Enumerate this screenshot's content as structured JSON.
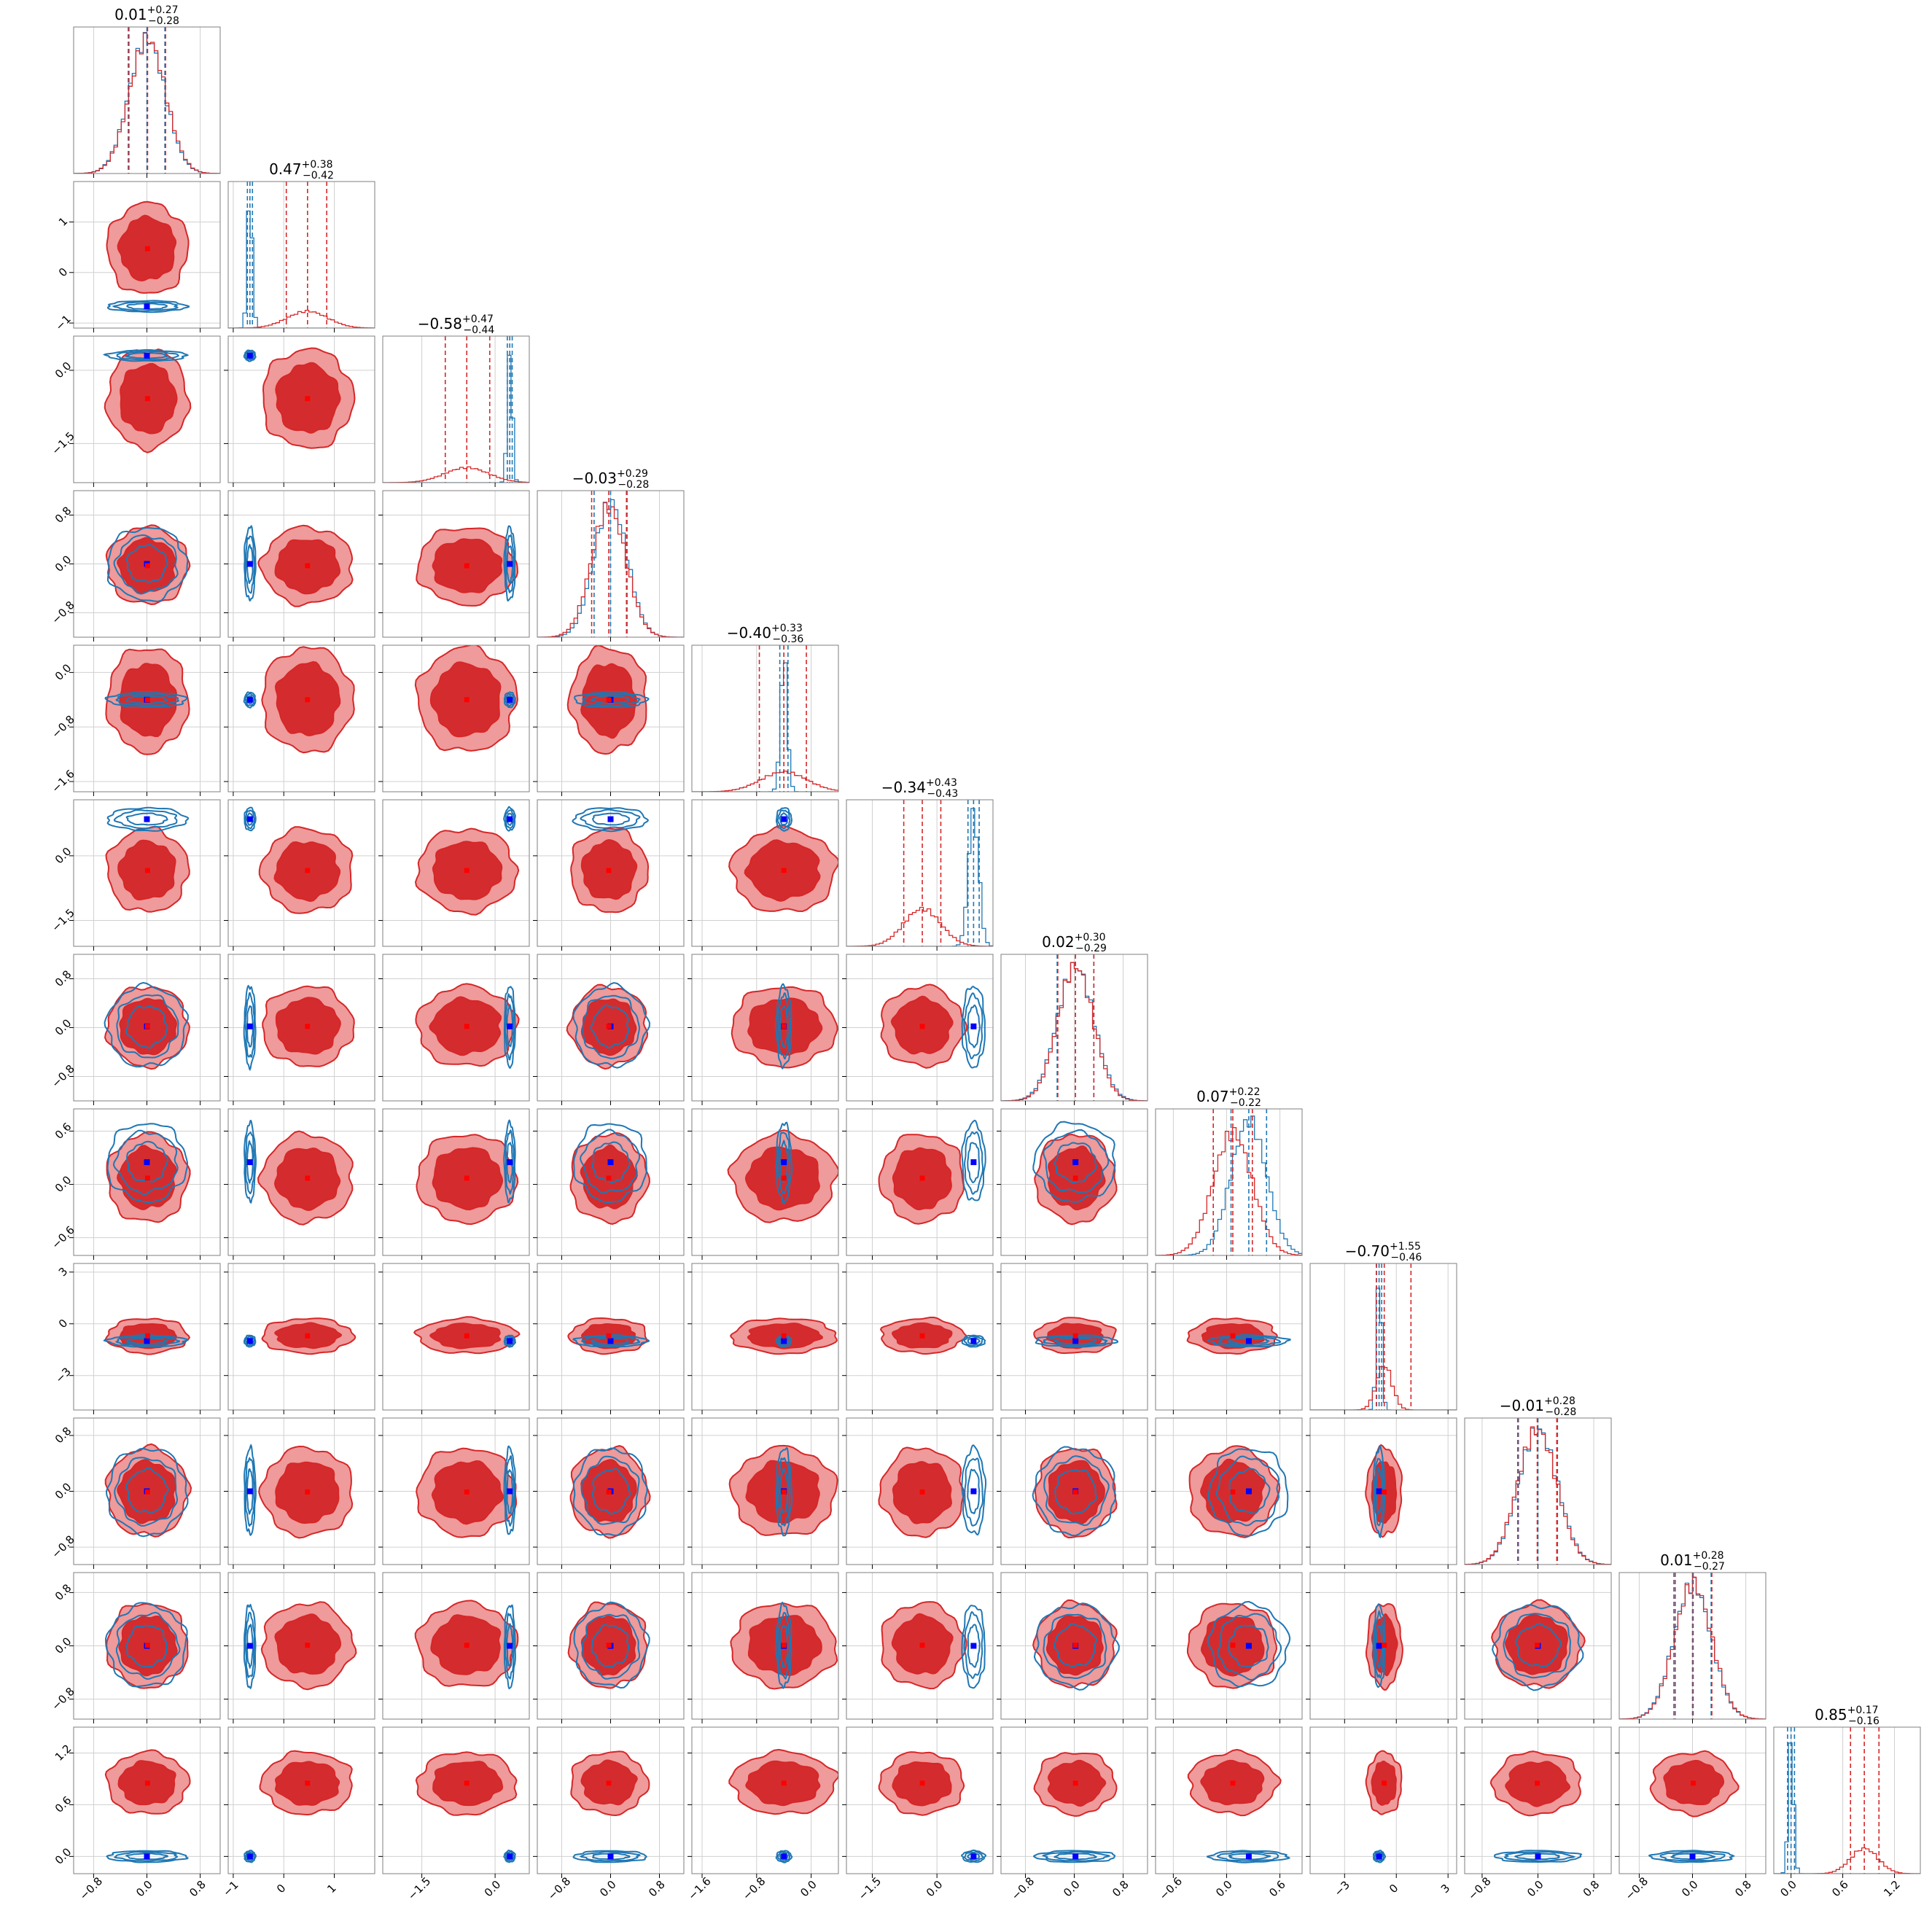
{
  "chart_data": {
    "type": "corner",
    "n_params": 12,
    "series": [
      {
        "name": "",
        "color": "#d62728"
      },
      {
        "name": "",
        "color": "#1f77b4"
      }
    ],
    "marker_colors": {
      "red_points": "#ff0000",
      "blue_points": "#0000ff"
    },
    "params": [
      {
        "title_val": "0.01",
        "plus": "+0.27",
        "minus": "−0.28",
        "range": [
          -1.1,
          1.1
        ],
        "ticks": [
          -0.8,
          0.0,
          0.8
        ],
        "tick_labels": [
          "−0.8",
          "0.0",
          "0.8"
        ],
        "red": {
          "mu": 0.01,
          "sd": 0.27
        },
        "blue": {
          "mu": 0.0,
          "sd": 0.27
        },
        "q": [
          -0.27,
          0.01,
          0.28
        ],
        "bq": [
          -0.28,
          0.0,
          0.27
        ],
        "bm": 0.0
      },
      {
        "title_val": "0.47",
        "plus": "+0.38",
        "minus": "−0.42",
        "range": [
          -1.1,
          1.8
        ],
        "ticks": [
          -1,
          0,
          1
        ],
        "tick_labels": [
          "−1",
          "0",
          "1"
        ],
        "red": {
          "mu": 0.47,
          "sd": 0.4
        },
        "blue": {
          "mu": -0.67,
          "sd": 0.05
        },
        "q": [
          0.05,
          0.47,
          0.85
        ],
        "bq": [
          -0.72,
          -0.67,
          -0.62
        ],
        "bm": -0.67
      },
      {
        "title_val": "−0.58",
        "plus": "+0.47",
        "minus": "−0.44",
        "range": [
          -2.3,
          0.7
        ],
        "ticks": [
          -1.5,
          0.0
        ],
        "tick_labels": [
          "−1.5",
          "0.0"
        ],
        "red": {
          "mu": -0.58,
          "sd": 0.45
        },
        "blue": {
          "mu": 0.3,
          "sd": 0.05
        },
        "q": [
          -1.02,
          -0.58,
          -0.11
        ],
        "bq": [
          0.25,
          0.3,
          0.35
        ],
        "bm": 0.3
      },
      {
        "title_val": "−0.03",
        "plus": "+0.29",
        "minus": "−0.28",
        "range": [
          -1.2,
          1.2
        ],
        "ticks": [
          -0.8,
          0.0,
          0.8
        ],
        "tick_labels": [
          "−0.8",
          "0.0",
          "0.8"
        ],
        "red": {
          "mu": -0.03,
          "sd": 0.28
        },
        "blue": {
          "mu": 0.0,
          "sd": 0.27
        },
        "q": [
          -0.31,
          -0.03,
          0.26
        ],
        "bq": [
          -0.27,
          0.0,
          0.27
        ],
        "bm": 0.0
      },
      {
        "title_val": "−0.40",
        "plus": "+0.33",
        "minus": "−0.36",
        "range": [
          -1.75,
          0.4
        ],
        "ticks": [
          -1.6,
          -0.8,
          0.0
        ],
        "tick_labels": [
          "−1.6",
          "−0.8",
          "0.0"
        ],
        "red": {
          "mu": -0.4,
          "sd": 0.34
        },
        "blue": {
          "mu": -0.4,
          "sd": 0.05
        },
        "q": [
          -0.76,
          -0.4,
          -0.07
        ],
        "bq": [
          -0.46,
          -0.4,
          -0.34
        ],
        "bm": -0.4
      },
      {
        "title_val": "−0.34",
        "plus": "+0.43",
        "minus": "−0.43",
        "range": [
          -2.1,
          1.3
        ],
        "ticks": [
          -1.5,
          0.0
        ],
        "tick_labels": [
          "−1.5",
          "0.0"
        ],
        "red": {
          "mu": -0.34,
          "sd": 0.43
        },
        "blue": {
          "mu": 0.85,
          "sd": 0.12
        },
        "q": [
          -0.77,
          -0.34,
          0.09
        ],
        "bq": [
          0.72,
          0.85,
          0.98
        ],
        "bm": 0.85
      },
      {
        "title_val": "0.02",
        "plus": "+0.30",
        "minus": "−0.29",
        "range": [
          -1.2,
          1.2
        ],
        "ticks": [
          -0.8,
          0.0,
          0.8
        ],
        "tick_labels": [
          "−0.8",
          "0.0",
          "0.8"
        ],
        "red": {
          "mu": 0.02,
          "sd": 0.29
        },
        "blue": {
          "mu": 0.02,
          "sd": 0.3
        },
        "q": [
          -0.27,
          0.02,
          0.32
        ],
        "bq": [
          -0.28,
          0.02,
          0.32
        ],
        "bm": 0.02
      },
      {
        "title_val": "0.07",
        "plus": "+0.22",
        "minus": "−0.22",
        "range": [
          -0.8,
          0.85
        ],
        "ticks": [
          -0.6,
          0.0,
          0.6
        ],
        "tick_labels": [
          "−0.6",
          "0.0",
          "0.6"
        ],
        "red": {
          "mu": 0.07,
          "sd": 0.22
        },
        "blue": {
          "mu": 0.25,
          "sd": 0.2
        },
        "q": [
          -0.15,
          0.07,
          0.29
        ],
        "bq": [
          0.05,
          0.25,
          0.45
        ],
        "bm": 0.25
      },
      {
        "title_val": "−0.70",
        "plus": "+1.55",
        "minus": "−0.46",
        "range": [
          -5.0,
          3.5
        ],
        "ticks": [
          -3,
          0,
          3
        ],
        "tick_labels": [
          "−3",
          "0",
          "3"
        ],
        "red": {
          "mu": -0.7,
          "sd": 0.45
        },
        "blue": {
          "mu": -1.0,
          "sd": 0.15
        },
        "q": [
          -1.16,
          -0.7,
          0.85
        ],
        "bq": [
          -1.15,
          -1.0,
          -0.85
        ],
        "bm": -1.0
      },
      {
        "title_val": "−0.01",
        "plus": "+0.28",
        "minus": "−0.28",
        "range": [
          -1.05,
          1.05
        ],
        "ticks": [
          -0.8,
          0.0,
          0.8
        ],
        "tick_labels": [
          "−0.8",
          "0.0",
          "0.8"
        ],
        "red": {
          "mu": -0.01,
          "sd": 0.28
        },
        "blue": {
          "mu": 0.0,
          "sd": 0.28
        },
        "q": [
          -0.29,
          -0.01,
          0.27
        ],
        "bq": [
          -0.28,
          0.0,
          0.28
        ],
        "bm": 0.0
      },
      {
        "title_val": "0.01",
        "plus": "+0.28",
        "minus": "−0.27",
        "range": [
          -1.1,
          1.1
        ],
        "ticks": [
          -0.8,
          0.0,
          0.8
        ],
        "tick_labels": [
          "−0.8",
          "0.0",
          "0.8"
        ],
        "red": {
          "mu": 0.01,
          "sd": 0.28
        },
        "blue": {
          "mu": 0.0,
          "sd": 0.28
        },
        "q": [
          -0.26,
          0.01,
          0.29
        ],
        "bq": [
          -0.28,
          0.0,
          0.28
        ],
        "bm": 0.0
      },
      {
        "title_val": "0.85",
        "plus": "+0.17",
        "minus": "−0.16",
        "range": [
          -0.2,
          1.5
        ],
        "ticks": [
          0.0,
          0.6,
          1.2
        ],
        "tick_labels": [
          "0.0",
          "0.6",
          "1.2"
        ],
        "red": {
          "mu": 0.85,
          "sd": 0.16
        },
        "blue": {
          "mu": 0.0,
          "sd": 0.03
        },
        "q": [
          0.69,
          0.85,
          1.02
        ],
        "bq": [
          -0.04,
          0.0,
          0.04
        ],
        "bm": 0.0
      }
    ]
  }
}
